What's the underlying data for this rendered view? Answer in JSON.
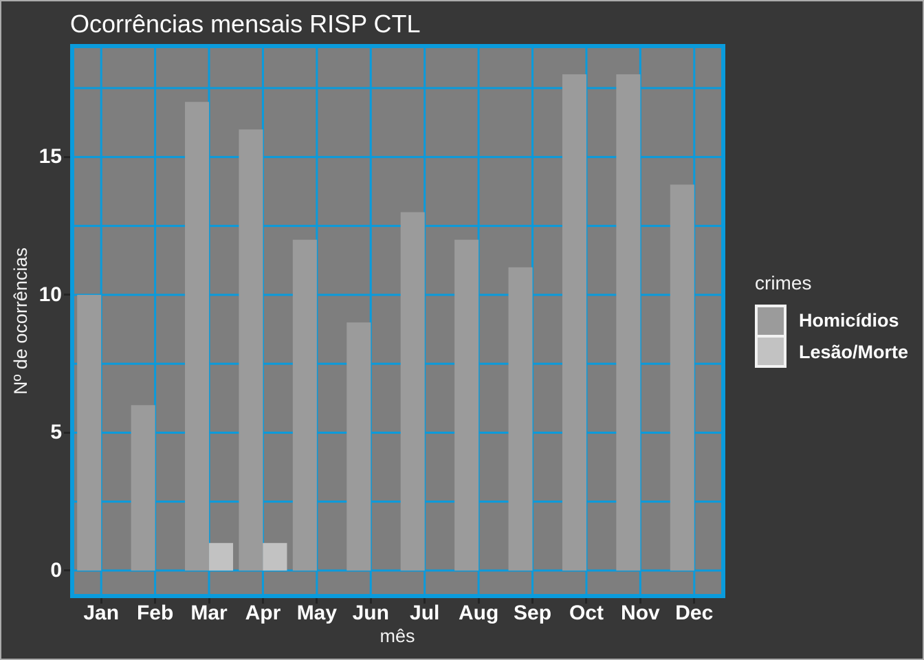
{
  "chart_data": {
    "type": "bar",
    "bar_mode": "dodge",
    "title": "Ocorrências mensais RISP CTL",
    "xlabel": "mês",
    "ylabel": "Nº de ocorrências",
    "categories": [
      "Jan",
      "Feb",
      "Mar",
      "Apr",
      "May",
      "Jun",
      "Jul",
      "Aug",
      "Sep",
      "Oct",
      "Nov",
      "Dec"
    ],
    "series": [
      {
        "name": "Homicídios",
        "color": "#9b9b9b",
        "values": [
          10,
          6,
          17,
          16,
          12,
          9,
          13,
          12,
          11,
          18,
          18,
          14
        ]
      },
      {
        "name": "Lesão/Morte",
        "color": "#c2c2c2",
        "values": [
          0,
          0,
          1,
          1,
          0,
          0,
          0,
          0,
          0,
          0,
          0,
          0
        ]
      }
    ],
    "legend_title": "crimes",
    "legend_position": "right",
    "yticks": [
      0,
      5,
      10,
      15
    ],
    "minor_yticks": [
      2.5,
      7.5,
      12.5,
      17.5
    ],
    "ylim": [
      -0.85,
      18.95
    ],
    "grid": true
  },
  "legend": {
    "title": "crimes",
    "items": [
      {
        "label": "Homicídios",
        "color": "#9b9b9b"
      },
      {
        "label": "Lesão/Morte",
        "color": "#c2c2c2"
      }
    ]
  },
  "colors": {
    "figure_background": "#373737",
    "outer_border": "#ababab",
    "panel_background": "#7e7e7e",
    "grid_blue": "#0a9bdc",
    "text": "#ffffff",
    "tick": "#242424",
    "legend_key_background": "#f2f2f2"
  }
}
